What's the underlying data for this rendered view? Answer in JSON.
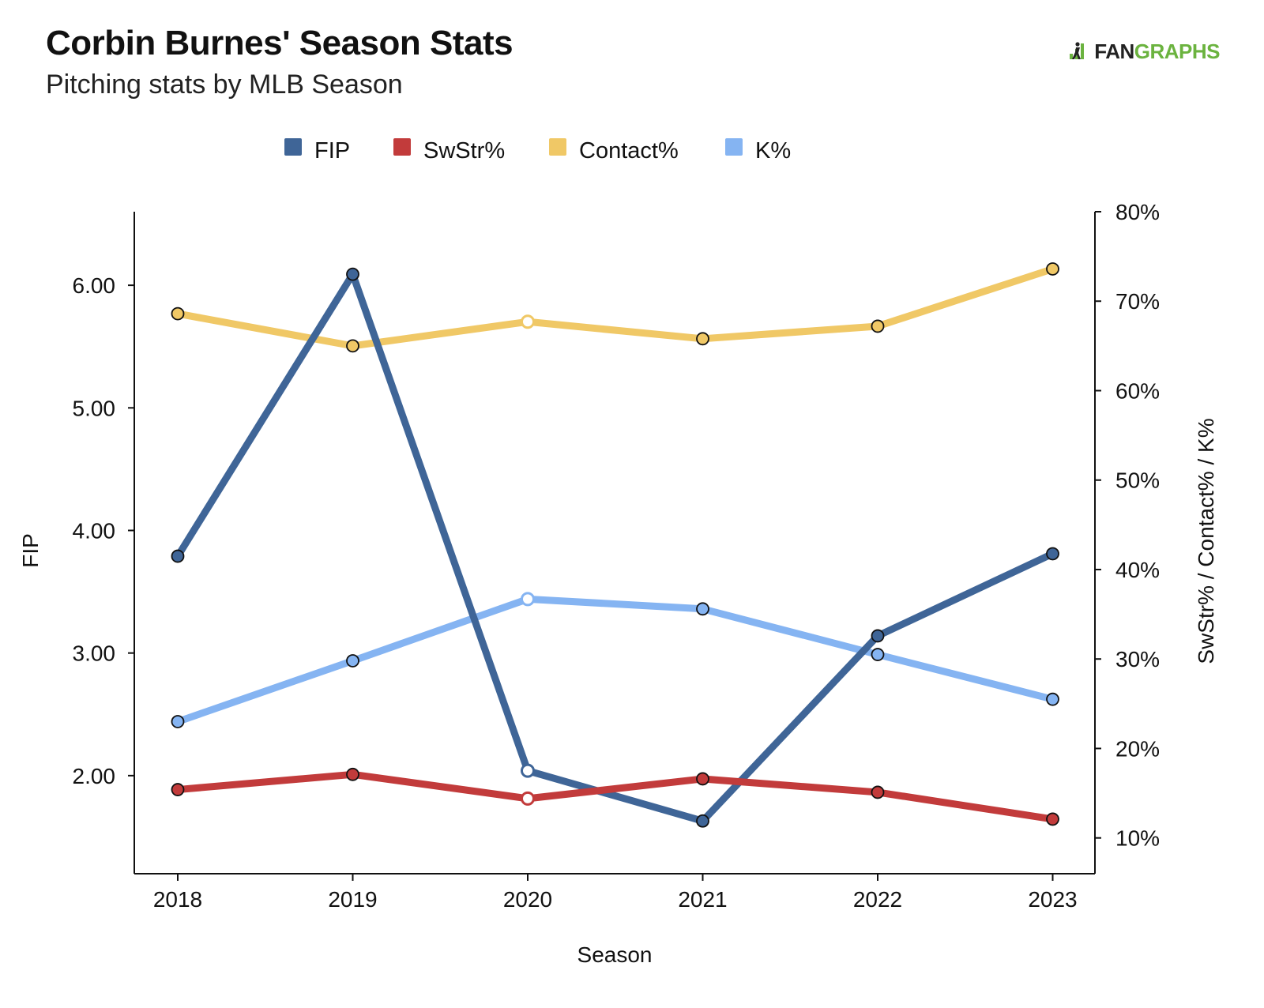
{
  "header": {
    "title": "Corbin Burnes' Season Stats",
    "subtitle": "Pitching stats by MLB Season",
    "logo_left": "FAN",
    "logo_right": "GRAPHS"
  },
  "chart_data": {
    "type": "line",
    "title": "Corbin Burnes' Season Stats",
    "subtitle": "Pitching stats by MLB Season",
    "xlabel": "Season",
    "ylabel_left": "FIP",
    "ylabel_right": "SwStr% / Contact% / K%",
    "categories": [
      "2018",
      "2019",
      "2020",
      "2021",
      "2022",
      "2023"
    ],
    "left_axis": {
      "ylim": [
        1.2,
        6.6
      ],
      "ticks": [
        2.0,
        3.0,
        4.0,
        5.0,
        6.0
      ],
      "tick_labels": [
        "2.00",
        "3.00",
        "4.00",
        "5.00",
        "6.00"
      ]
    },
    "right_axis": {
      "ylim": [
        6,
        80
      ],
      "ticks": [
        10,
        20,
        30,
        40,
        50,
        60,
        70,
        80
      ],
      "tick_labels": [
        "10%",
        "20%",
        "30%",
        "40%",
        "50%",
        "60%",
        "70%",
        "80%"
      ]
    },
    "series": [
      {
        "name": "FIP",
        "axis": "left",
        "color": "#3f6597",
        "values": [
          3.79,
          6.09,
          2.04,
          1.63,
          3.14,
          3.81
        ]
      },
      {
        "name": "SwStr%",
        "axis": "right",
        "color": "#c23b3b",
        "values": [
          15.4,
          17.1,
          14.4,
          16.6,
          15.1,
          12.1
        ]
      },
      {
        "name": "Contact%",
        "axis": "right",
        "color": "#f0c866",
        "values": [
          68.6,
          65.0,
          67.7,
          65.8,
          67.2,
          73.6
        ]
      },
      {
        "name": "K%",
        "axis": "right",
        "color": "#85b4f2",
        "values": [
          23.0,
          29.8,
          36.7,
          35.6,
          30.5,
          25.5
        ]
      }
    ],
    "legend_position": "top-center",
    "grid": false
  }
}
